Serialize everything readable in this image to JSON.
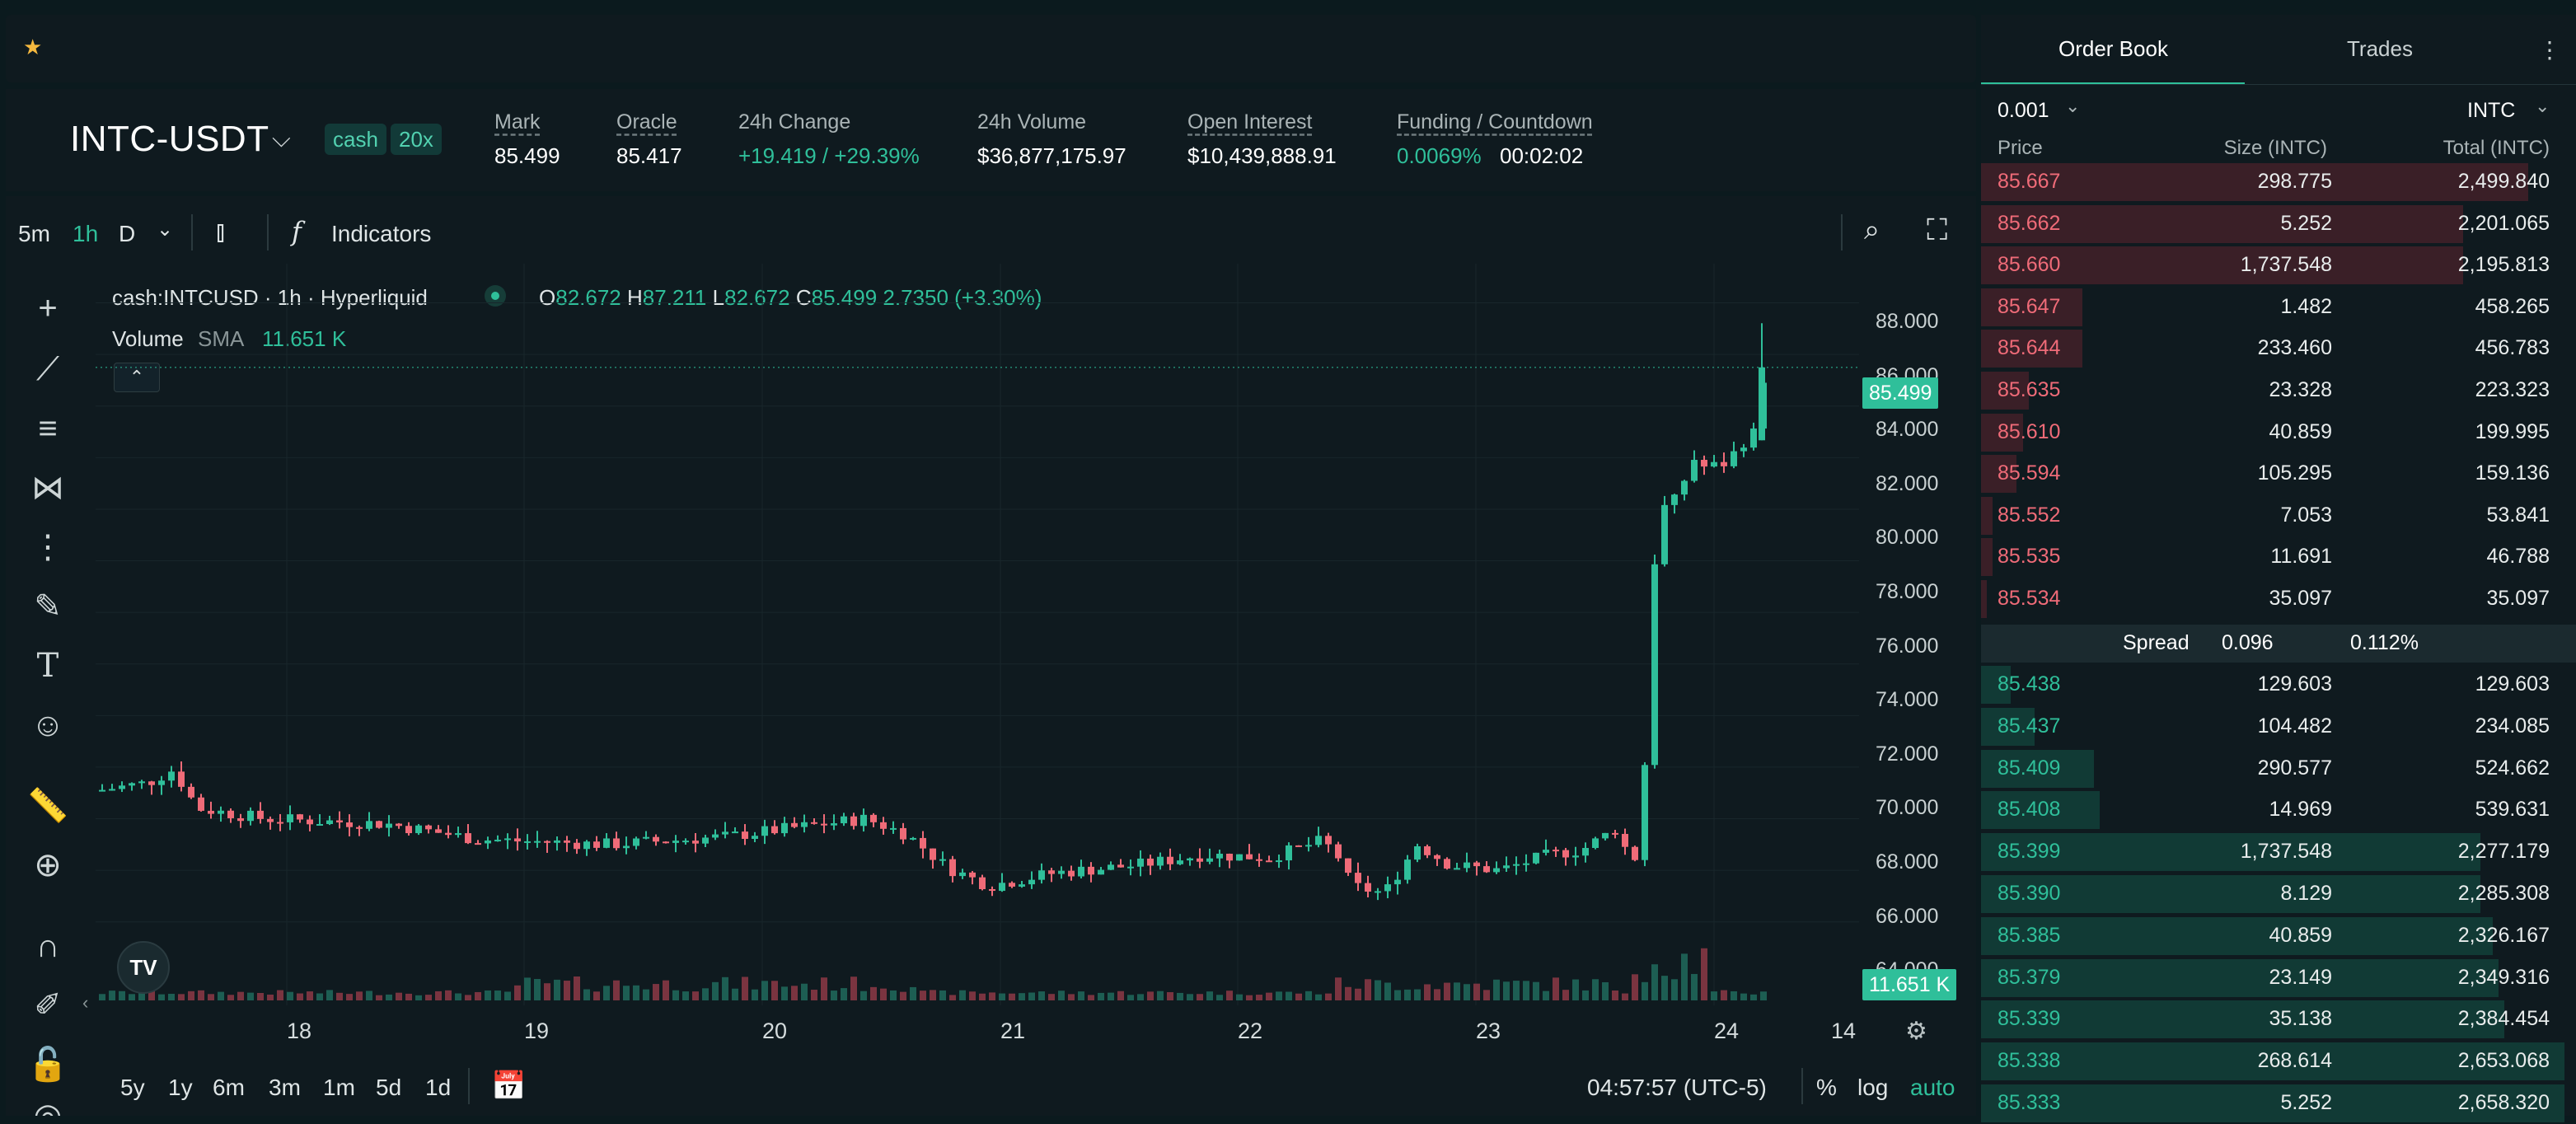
{
  "favorites_icon": "star-icon",
  "market": {
    "symbol": "INTC-USDT",
    "tag_cash": "cash",
    "tag_leverage": "20x"
  },
  "stats": {
    "mark_label": "Mark",
    "mark_value": "85.499",
    "oracle_label": "Oracle",
    "oracle_value": "85.417",
    "change_label": "24h Change",
    "change_value": "+19.419 / +29.39%",
    "volume_label": "24h Volume",
    "volume_value": "$36,877,175.97",
    "oi_label": "Open Interest",
    "oi_value": "$10,439,888.91",
    "funding_label": "Funding / Countdown",
    "funding_rate": "0.0069%",
    "countdown": "00:02:02"
  },
  "toolbar": {
    "tf_5m": "5m",
    "tf_1h": "1h",
    "tf_d": "D",
    "indicators": "Indicators"
  },
  "legend": {
    "title": "cash:INTCUSD · 1h · Hyperliquid",
    "o_label": "O",
    "o_value": "82.672",
    "h_label": "H",
    "h_value": "87.211",
    "l_label": "L",
    "l_value": "82.672",
    "c_label": "C",
    "c_value": "85.499",
    "change": "2.7350 (+3.30%)",
    "volume_label": "Volume",
    "sma_label": "SMA",
    "volume_value": "11.651 K"
  },
  "price_axis": [
    "88.000",
    "86.000",
    "84.000",
    "82.000",
    "80.000",
    "78.000",
    "76.000",
    "74.000",
    "72.000",
    "70.000",
    "68.000",
    "66.000",
    "64.000"
  ],
  "last_price_tag": "85.499",
  "volume_tag": "11.651 K",
  "time_axis": [
    "18",
    "19",
    "20",
    "21",
    "22",
    "23",
    "24",
    "14"
  ],
  "ranges": [
    "5y",
    "1y",
    "6m",
    "3m",
    "1m",
    "5d",
    "1d"
  ],
  "bottom": {
    "clock": "04:57:57 (UTC-5)",
    "pct": "%",
    "log": "log",
    "auto": "auto"
  },
  "orderbook": {
    "tab_book": "Order Book",
    "tab_trades": "Trades",
    "tick": "0.001",
    "unit": "INTC",
    "col_price": "Price",
    "col_size": "Size (INTC)",
    "col_total": "Total (INTC)",
    "asks": [
      {
        "price": "85.667",
        "size": "298.775",
        "total": "2,499.840",
        "depth": 0.92
      },
      {
        "price": "85.662",
        "size": "5.252",
        "total": "2,201.065",
        "depth": 0.81
      },
      {
        "price": "85.660",
        "size": "1,737.548",
        "total": "2,195.813",
        "depth": 0.81
      },
      {
        "price": "85.647",
        "size": "1.482",
        "total": "458.265",
        "depth": 0.17
      },
      {
        "price": "85.644",
        "size": "233.460",
        "total": "456.783",
        "depth": 0.17
      },
      {
        "price": "85.635",
        "size": "23.328",
        "total": "223.323",
        "depth": 0.08
      },
      {
        "price": "85.610",
        "size": "40.859",
        "total": "199.995",
        "depth": 0.07
      },
      {
        "price": "85.594",
        "size": "105.295",
        "total": "159.136",
        "depth": 0.06
      },
      {
        "price": "85.552",
        "size": "7.053",
        "total": "53.841",
        "depth": 0.02
      },
      {
        "price": "85.535",
        "size": "11.691",
        "total": "46.788",
        "depth": 0.02
      },
      {
        "price": "85.534",
        "size": "35.097",
        "total": "35.097",
        "depth": 0.01
      }
    ],
    "spread_label": "Spread",
    "spread_value": "0.096",
    "spread_pct": "0.112%",
    "bids": [
      {
        "price": "85.438",
        "size": "129.603",
        "total": "129.603",
        "depth": 0.05
      },
      {
        "price": "85.437",
        "size": "104.482",
        "total": "234.085",
        "depth": 0.09
      },
      {
        "price": "85.409",
        "size": "290.577",
        "total": "524.662",
        "depth": 0.19
      },
      {
        "price": "85.408",
        "size": "14.969",
        "total": "539.631",
        "depth": 0.2
      },
      {
        "price": "85.399",
        "size": "1,737.548",
        "total": "2,277.179",
        "depth": 0.84
      },
      {
        "price": "85.390",
        "size": "8.129",
        "total": "2,285.308",
        "depth": 0.84
      },
      {
        "price": "85.385",
        "size": "40.859",
        "total": "2,326.167",
        "depth": 0.86
      },
      {
        "price": "85.379",
        "size": "23.149",
        "total": "2,349.316",
        "depth": 0.87
      },
      {
        "price": "85.339",
        "size": "35.138",
        "total": "2,384.454",
        "depth": 0.88
      },
      {
        "price": "85.338",
        "size": "268.614",
        "total": "2,653.068",
        "depth": 0.98
      },
      {
        "price": "85.333",
        "size": "5.252",
        "total": "2,658.320",
        "depth": 0.98
      }
    ]
  },
  "colors": {
    "up": "#2fbf9a",
    "down": "#ef6b78",
    "bg": "#0f1a1f"
  }
}
